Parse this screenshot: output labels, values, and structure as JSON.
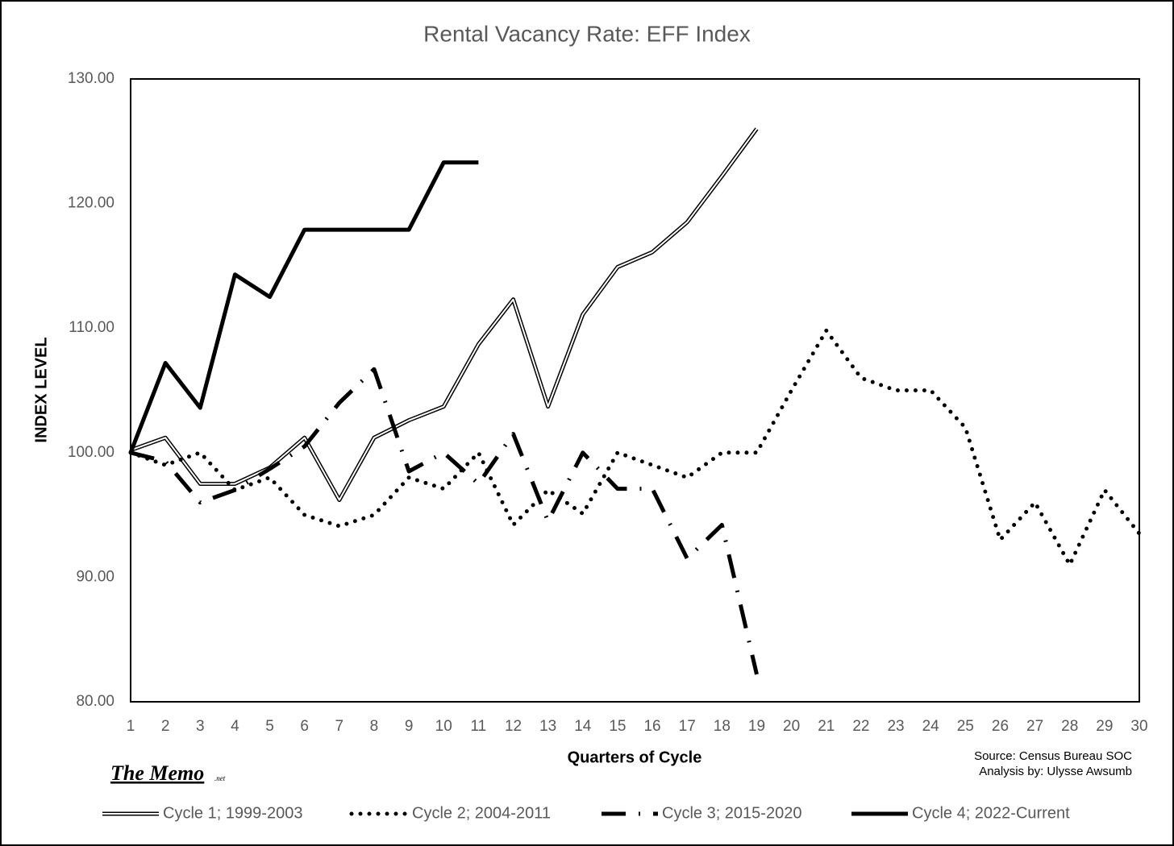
{
  "chart_data": {
    "type": "line",
    "title": "Rental Vacancy Rate: EFF  Index",
    "y_label": "INDEX LEVEL",
    "x_label": "Quarters of Cycle",
    "source": "Source: Census Bureau SOC",
    "analysis": "Analysis by: Ulysse Awsumb",
    "brand": "The Memo",
    "brand_suffix": ".net",
    "x": [
      1,
      2,
      3,
      4,
      5,
      6,
      7,
      8,
      9,
      10,
      11,
      12,
      13,
      14,
      15,
      16,
      17,
      18,
      19,
      20,
      21,
      22,
      23,
      24,
      25,
      26,
      27,
      28,
      29,
      30
    ],
    "xlim": [
      1,
      30
    ],
    "xticks": [
      1,
      2,
      3,
      4,
      5,
      6,
      7,
      8,
      9,
      10,
      11,
      12,
      13,
      14,
      15,
      16,
      17,
      18,
      19,
      20,
      21,
      22,
      23,
      24,
      25,
      26,
      27,
      28,
      29,
      30
    ],
    "ylim": [
      80,
      130
    ],
    "yticks": [
      {
        "value": 80,
        "label": "80.00"
      },
      {
        "value": 90,
        "label": "90.00"
      },
      {
        "value": 100,
        "label": "100.00"
      },
      {
        "value": 110,
        "label": "110.00"
      },
      {
        "value": 120,
        "label": "120.00"
      },
      {
        "value": 130,
        "label": "130.00"
      }
    ],
    "grid": false,
    "legend": "bottom",
    "series": [
      {
        "name": "Cycle 1; 1999-2003",
        "color": "#000000",
        "line_style": "double",
        "values": [
          100.2,
          101.2,
          97.5,
          97.5,
          98.8,
          101.2,
          96.2,
          101.2,
          102.6,
          103.7,
          108.7,
          112.3,
          103.7,
          111.1,
          114.9,
          116.1,
          118.5,
          122.2,
          126.0,
          null,
          null,
          null,
          null,
          null,
          null,
          null,
          null,
          null,
          null,
          null
        ]
      },
      {
        "name": "Cycle 2; 2004-2011",
        "color": "#000000",
        "line_style": "dotted",
        "values": [
          100,
          99,
          100,
          97,
          98,
          95,
          94.1,
          95,
          98,
          97.1,
          100,
          94.2,
          97,
          95.1,
          100,
          99,
          98,
          100,
          100,
          105,
          109.8,
          106,
          105,
          105,
          102,
          93,
          96,
          91,
          97,
          93.5
        ]
      },
      {
        "name": "Cycle 3; 2015-2020",
        "color": "#000000",
        "line_style": "dashdot",
        "values": [
          100,
          99.3,
          96,
          97,
          98.7,
          100.5,
          104,
          106.7,
          98.5,
          100,
          97.5,
          101.5,
          94.5,
          100,
          97.1,
          97.1,
          91.5,
          94.2,
          82.2,
          null,
          null,
          null,
          null,
          null,
          null,
          null,
          null,
          null,
          null,
          null
        ]
      },
      {
        "name": "Cycle 4; 2022-Current",
        "color": "#000000",
        "line_style": "solid",
        "values": [
          100,
          107.2,
          103.6,
          114.3,
          112.5,
          117.9,
          117.9,
          117.9,
          117.9,
          123.3,
          123.3,
          null,
          null,
          null,
          null,
          null,
          null,
          null,
          null,
          null,
          null,
          null,
          null,
          null,
          null,
          null,
          null,
          null,
          null,
          null
        ]
      }
    ]
  }
}
